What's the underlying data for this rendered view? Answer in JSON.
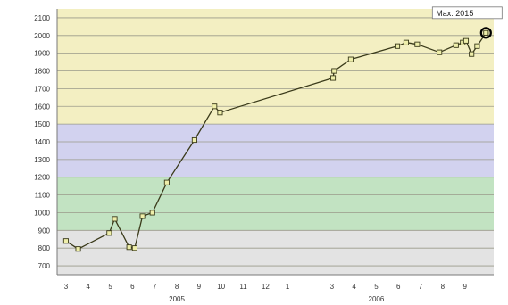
{
  "chart_data": {
    "type": "line",
    "title": "",
    "xlabel": "",
    "ylabel": "",
    "ylim": [
      650,
      2150
    ],
    "y_ticks": [
      700,
      800,
      900,
      1000,
      1100,
      1200,
      1300,
      1400,
      1500,
      1600,
      1700,
      1800,
      1900,
      2000,
      2100
    ],
    "x_ticks": [
      "3",
      "4",
      "5",
      "6",
      "7",
      "8",
      "9",
      "10",
      "11",
      "12",
      "1",
      "3",
      "4",
      "5",
      "6",
      "7",
      "8",
      "9"
    ],
    "x_ticks_pos": [
      3,
      4,
      5,
      6,
      7,
      8,
      9,
      10,
      11,
      12,
      13,
      15,
      16,
      17,
      18,
      19,
      20,
      21
    ],
    "year_labels": [
      {
        "label": "2005",
        "pos": 8
      },
      {
        "label": "2006",
        "pos": 17
      }
    ],
    "xlim": [
      2.6,
      22.3
    ],
    "grid": true,
    "bands": [
      {
        "from": 650,
        "to": 900,
        "color": "#e3e3e3"
      },
      {
        "from": 900,
        "to": 1200,
        "color": "#c2e3c2"
      },
      {
        "from": 1200,
        "to": 1500,
        "color": "#d2d2ef"
      },
      {
        "from": 1500,
        "to": 2150,
        "color": "#f3efc2"
      }
    ],
    "series_color": "#3a3a1a",
    "marker_fill": "#eeeeaa",
    "points": [
      {
        "x": 3.0,
        "y": 840
      },
      {
        "x": 3.55,
        "y": 795
      },
      {
        "x": 4.95,
        "y": 885
      },
      {
        "x": 5.2,
        "y": 965
      },
      {
        "x": 5.85,
        "y": 805
      },
      {
        "x": 6.1,
        "y": 800
      },
      {
        "x": 6.45,
        "y": 980
      },
      {
        "x": 6.9,
        "y": 1000
      },
      {
        "x": 7.55,
        "y": 1170
      },
      {
        "x": 8.8,
        "y": 1410
      },
      {
        "x": 9.7,
        "y": 1600
      },
      {
        "x": 9.95,
        "y": 1565
      },
      {
        "x": 15.05,
        "y": 1760
      },
      {
        "x": 15.1,
        "y": 1800
      },
      {
        "x": 15.85,
        "y": 1865
      },
      {
        "x": 17.95,
        "y": 1940
      },
      {
        "x": 18.35,
        "y": 1960
      },
      {
        "x": 18.85,
        "y": 1950
      },
      {
        "x": 19.85,
        "y": 1905
      },
      {
        "x": 20.6,
        "y": 1945
      },
      {
        "x": 20.9,
        "y": 1960
      },
      {
        "x": 21.05,
        "y": 1970
      },
      {
        "x": 21.3,
        "y": 1895
      },
      {
        "x": 21.55,
        "y": 1940
      },
      {
        "x": 21.95,
        "y": 2015
      }
    ],
    "annotation": {
      "label": "Max: 2015",
      "x": 21.95,
      "y": 2015
    }
  }
}
